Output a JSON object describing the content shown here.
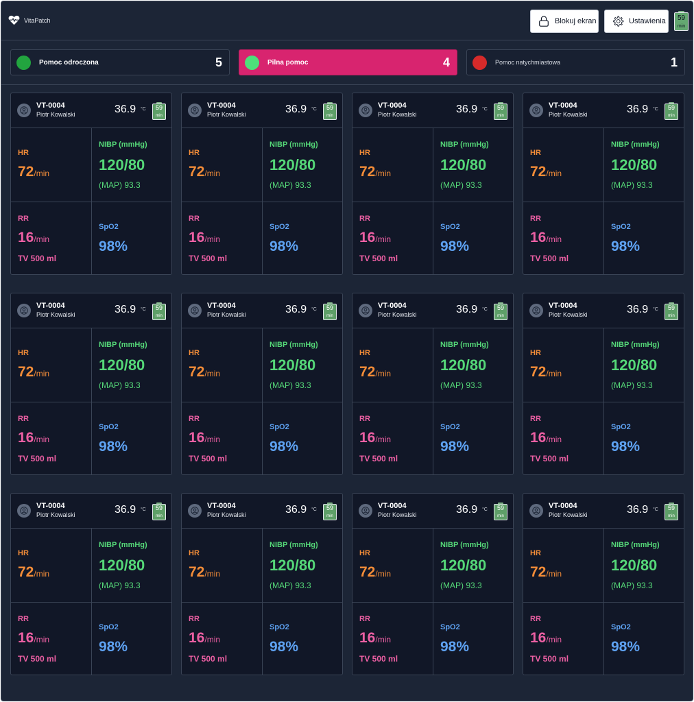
{
  "app": {
    "name": "VitaPatch",
    "lock_label": "Blokuj ekran",
    "settings_label": "Ustawienia",
    "battery": {
      "value": "59",
      "unit": "min"
    }
  },
  "statuses": [
    {
      "label": "Pomoc odroczona",
      "count": "5",
      "color": "#22a43f"
    },
    {
      "label": "Pilna pomoc",
      "count": "4",
      "color": "#4ee07a",
      "highlight": "#d8246f"
    },
    {
      "label": "Pomoc natychmiastowa",
      "count": "1",
      "color": "#d62a2a"
    }
  ],
  "patients": [
    {
      "id": "VT-0004",
      "name": "Piotr Kowalski",
      "temp": "36.9",
      "temp_unit": "°C",
      "battery": "59",
      "battery_unit": "min",
      "hr_label": "HR",
      "hr": "72",
      "hr_unit": "/min",
      "nibp_label": "NIBP (mmHg)",
      "nibp": "120/80",
      "map": "(MAP) 93.3",
      "rr_label": "RR",
      "rr": "16",
      "rr_unit": "/min",
      "tv": "TV  500 ml",
      "spo2_label": "SpO2",
      "spo2": "98%"
    },
    {
      "id": "VT-0004",
      "name": "Piotr Kowalski",
      "temp": "36.9",
      "temp_unit": "°C",
      "battery": "59",
      "battery_unit": "min",
      "hr_label": "HR",
      "hr": "72",
      "hr_unit": "/min",
      "nibp_label": "NIBP (mmHg)",
      "nibp": "120/80",
      "map": "(MAP) 93.3",
      "rr_label": "RR",
      "rr": "16",
      "rr_unit": "/min",
      "tv": "TV  500 ml",
      "spo2_label": "SpO2",
      "spo2": "98%"
    },
    {
      "id": "VT-0004",
      "name": "Piotr Kowalski",
      "temp": "36.9",
      "temp_unit": "°C",
      "battery": "59",
      "battery_unit": "min",
      "hr_label": "HR",
      "hr": "72",
      "hr_unit": "/min",
      "nibp_label": "NIBP (mmHg)",
      "nibp": "120/80",
      "map": "(MAP) 93.3",
      "rr_label": "RR",
      "rr": "16",
      "rr_unit": "/min",
      "tv": "TV  500 ml",
      "spo2_label": "SpO2",
      "spo2": "98%"
    },
    {
      "id": "VT-0004",
      "name": "Piotr Kowalski",
      "temp": "36.9",
      "temp_unit": "°C",
      "battery": "59",
      "battery_unit": "min",
      "hr_label": "HR",
      "hr": "72",
      "hr_unit": "/min",
      "nibp_label": "NIBP (mmHg)",
      "nibp": "120/80",
      "map": "(MAP) 93.3",
      "rr_label": "RR",
      "rr": "16",
      "rr_unit": "/min",
      "tv": "TV  500 ml",
      "spo2_label": "SpO2",
      "spo2": "98%"
    },
    {
      "id": "VT-0004",
      "name": "Piotr Kowalski",
      "temp": "36.9",
      "temp_unit": "°C",
      "battery": "59",
      "battery_unit": "min",
      "hr_label": "HR",
      "hr": "72",
      "hr_unit": "/min",
      "nibp_label": "NIBP (mmHg)",
      "nibp": "120/80",
      "map": "(MAP) 93.3",
      "rr_label": "RR",
      "rr": "16",
      "rr_unit": "/min",
      "tv": "TV  500 ml",
      "spo2_label": "SpO2",
      "spo2": "98%"
    },
    {
      "id": "VT-0004",
      "name": "Piotr Kowalski",
      "temp": "36.9",
      "temp_unit": "°C",
      "battery": "59",
      "battery_unit": "min",
      "hr_label": "HR",
      "hr": "72",
      "hr_unit": "/min",
      "nibp_label": "NIBP (mmHg)",
      "nibp": "120/80",
      "map": "(MAP) 93.3",
      "rr_label": "RR",
      "rr": "16",
      "rr_unit": "/min",
      "tv": "TV  500 ml",
      "spo2_label": "SpO2",
      "spo2": "98%"
    },
    {
      "id": "VT-0004",
      "name": "Piotr Kowalski",
      "temp": "36.9",
      "temp_unit": "°C",
      "battery": "59",
      "battery_unit": "min",
      "hr_label": "HR",
      "hr": "72",
      "hr_unit": "/min",
      "nibp_label": "NIBP (mmHg)",
      "nibp": "120/80",
      "map": "(MAP) 93.3",
      "rr_label": "RR",
      "rr": "16",
      "rr_unit": "/min",
      "tv": "TV  500 ml",
      "spo2_label": "SpO2",
      "spo2": "98%"
    },
    {
      "id": "VT-0004",
      "name": "Piotr Kowalski",
      "temp": "36.9",
      "temp_unit": "°C",
      "battery": "59",
      "battery_unit": "min",
      "hr_label": "HR",
      "hr": "72",
      "hr_unit": "/min",
      "nibp_label": "NIBP (mmHg)",
      "nibp": "120/80",
      "map": "(MAP) 93.3",
      "rr_label": "RR",
      "rr": "16",
      "rr_unit": "/min",
      "tv": "TV  500 ml",
      "spo2_label": "SpO2",
      "spo2": "98%"
    },
    {
      "id": "VT-0004",
      "name": "Piotr Kowalski",
      "temp": "36.9",
      "temp_unit": "°C",
      "battery": "59",
      "battery_unit": "min",
      "hr_label": "HR",
      "hr": "72",
      "hr_unit": "/min",
      "nibp_label": "NIBP (mmHg)",
      "nibp": "120/80",
      "map": "(MAP) 93.3",
      "rr_label": "RR",
      "rr": "16",
      "rr_unit": "/min",
      "tv": "TV  500 ml",
      "spo2_label": "SpO2",
      "spo2": "98%"
    },
    {
      "id": "VT-0004",
      "name": "Piotr Kowalski",
      "temp": "36.9",
      "temp_unit": "°C",
      "battery": "59",
      "battery_unit": "min",
      "hr_label": "HR",
      "hr": "72",
      "hr_unit": "/min",
      "nibp_label": "NIBP (mmHg)",
      "nibp": "120/80",
      "map": "(MAP) 93.3",
      "rr_label": "RR",
      "rr": "16",
      "rr_unit": "/min",
      "tv": "TV  500 ml",
      "spo2_label": "SpO2",
      "spo2": "98%"
    },
    {
      "id": "VT-0004",
      "name": "Piotr Kowalski",
      "temp": "36.9",
      "temp_unit": "°C",
      "battery": "59",
      "battery_unit": "min",
      "hr_label": "HR",
      "hr": "72",
      "hr_unit": "/min",
      "nibp_label": "NIBP (mmHg)",
      "nibp": "120/80",
      "map": "(MAP) 93.3",
      "rr_label": "RR",
      "rr": "16",
      "rr_unit": "/min",
      "tv": "TV  500 ml",
      "spo2_label": "SpO2",
      "spo2": "98%"
    },
    {
      "id": "VT-0004",
      "name": "Piotr Kowalski",
      "temp": "36.9",
      "temp_unit": "°C",
      "battery": "59",
      "battery_unit": "min",
      "hr_label": "HR",
      "hr": "72",
      "hr_unit": "/min",
      "nibp_label": "NIBP (mmHg)",
      "nibp": "120/80",
      "map": "(MAP) 93.3",
      "rr_label": "RR",
      "rr": "16",
      "rr_unit": "/min",
      "tv": "TV  500 ml",
      "spo2_label": "SpO2",
      "spo2": "98%"
    }
  ]
}
